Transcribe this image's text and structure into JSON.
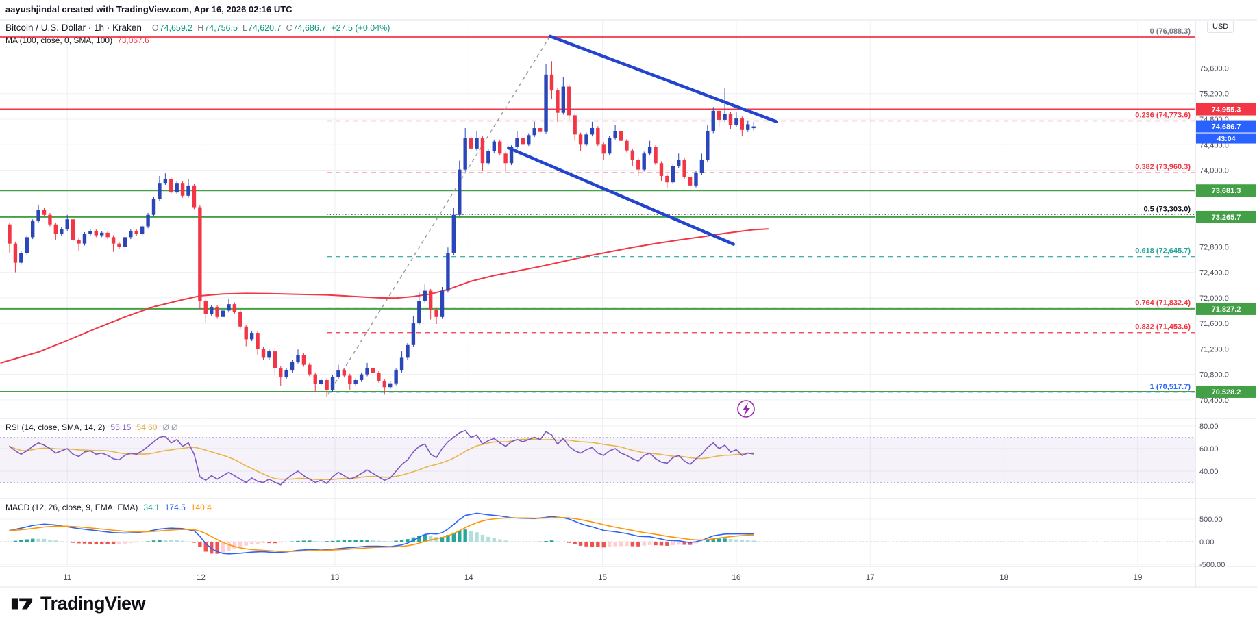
{
  "attribution": "aayushjindal created with TradingView.com, Apr 16, 2026 02:16 UTC",
  "symbol_header": {
    "title": "Bitcoin / U.S. Dollar · 1h · Kraken",
    "ohlc": {
      "o_label": "O",
      "o": "74,659.2",
      "h_label": "H",
      "h": "74,756.5",
      "l_label": "L",
      "l": "74,620.7",
      "c_label": "C",
      "c": "74,686.7",
      "change": "+27.5 (+0.04%)"
    },
    "ma_label": "MA (100, close, 0, SMA, 100)",
    "ma_value": "73,067.6"
  },
  "rsi_legend": {
    "title": "RSI (14, close, SMA, 14, 2)",
    "v1": "55.15",
    "v2": "54.60",
    "extra": "Ø Ø"
  },
  "macd_legend": {
    "title": "MACD (12, 26, close, 9, EMA, EMA)",
    "hist": "34.1",
    "macd": "174.5",
    "signal": "140.4"
  },
  "axis": {
    "currency": "USD",
    "main_ticks": [
      75600,
      75200,
      74800,
      74400,
      74000,
      72800,
      72400,
      72000,
      71600,
      71200,
      70800,
      70400
    ],
    "rsi_ticks": [
      80,
      60,
      40
    ],
    "macd_ticks": [
      500,
      0,
      -500
    ]
  },
  "time_axis": {
    "labels": [
      "11",
      "12",
      "13",
      "14",
      "15",
      "16",
      "17",
      "18",
      "19"
    ]
  },
  "logo_text": "TradingView",
  "colors": {
    "up": "#2a46b8",
    "down": "#F23645",
    "trend": "#2244cf",
    "ma": "#F23645",
    "rsi": "#7E57C2",
    "rsi_ma": "#E8B648",
    "band": "rgba(126,87,194,0.08)",
    "macd_line": "#2962FF",
    "signal_line": "#FF9500",
    "hist_up": "#26A69A",
    "hist_up_fade": "#B2DFDB",
    "hist_dn": "#EF5350",
    "hist_dn_fade": "#FFCDD2",
    "grid": "#eef0f5",
    "separator": "#e0e3eb",
    "axis_border": "#d6d9e0",
    "green_line": "#43A047",
    "red_line": "#F23645",
    "blue_tag": "#2962FF",
    "tick_text": "#4a4e59",
    "fib0_label": "#787b86"
  },
  "chart_data": {
    "type": "candlestick_with_indicators",
    "title": "Bitcoin / U.S. Dollar · 1h · Kraken",
    "current_price_tag": {
      "value": 74686.7,
      "text": "74,686.7",
      "countdown": "43:04"
    },
    "candles": {
      "first_open": 73150,
      "open_overrides": {
        "0": 73150,
        "129": 74659.2
      },
      "closes": [
        72850,
        72550,
        72700,
        72950,
        73200,
        73380,
        73300,
        73150,
        73000,
        73080,
        73230,
        72900,
        72850,
        73000,
        73050,
        72980,
        73020,
        72950,
        72850,
        72800,
        72950,
        73050,
        73000,
        73120,
        73300,
        73550,
        73800,
        73860,
        73650,
        73800,
        73600,
        73760,
        73420,
        71950,
        71750,
        71860,
        71700,
        71800,
        71900,
        71780,
        71550,
        71350,
        71450,
        71200,
        71060,
        71160,
        70900,
        70760,
        70860,
        71000,
        71100,
        70950,
        70800,
        70650,
        70710,
        70550,
        70760,
        70860,
        70780,
        70650,
        70710,
        70800,
        70900,
        70820,
        70700,
        70600,
        70660,
        70860,
        71060,
        71260,
        71600,
        71950,
        72110,
        71810,
        71700,
        72110,
        72700,
        73300,
        74010,
        74500,
        74340,
        74500,
        74110,
        74300,
        74450,
        74260,
        74110,
        74360,
        74500,
        74410,
        74550,
        74660,
        74600,
        75500,
        75250,
        74900,
        75310,
        74860,
        74560,
        74410,
        74560,
        74660,
        74410,
        74260,
        74510,
        74610,
        74460,
        74310,
        74160,
        74010,
        74260,
        74360,
        74110,
        73910,
        73810,
        74060,
        74160,
        73890,
        73760,
        73960,
        74160,
        74610,
        74930,
        74790,
        74880,
        74710,
        74810,
        74630,
        74720,
        74686.7
      ],
      "high_overrides": {
        "5": 73460,
        "10": 73300,
        "26": 73910,
        "27": 73950,
        "31": 73860,
        "38": 71980,
        "50": 71190,
        "57": 70950,
        "62": 70980,
        "68": 71160,
        "70": 71710,
        "71": 72090,
        "72": 72210,
        "75": 72170,
        "76": 72790,
        "77": 73410,
        "78": 74150,
        "79": 74660,
        "81": 74610,
        "88": 74610,
        "91": 74760,
        "93": 75660,
        "94": 75710,
        "96": 75460,
        "101": 74760,
        "105": 74710,
        "111": 74460,
        "116": 74260,
        "120": 74260,
        "121": 74710,
        "122": 74990,
        "124": 75290,
        "126": 74910,
        "128": 74780,
        "129": 74756.5
      },
      "low_overrides": {
        "0": 72700,
        "1": 72400,
        "8": 72900,
        "12": 72740,
        "18": 72720,
        "33": 71820,
        "34": 71600,
        "41": 71240,
        "43": 71100,
        "46": 70790,
        "47": 70620,
        "53": 70520,
        "55": 70450,
        "59": 70560,
        "65": 70480,
        "73": 71660,
        "74": 71590,
        "82": 73990,
        "86": 73980,
        "94": 75120,
        "95": 74760,
        "97": 74790,
        "98": 74460,
        "99": 74300,
        "103": 74160,
        "108": 74060,
        "109": 73910,
        "113": 73830,
        "114": 73720,
        "118": 73630,
        "123": 74670,
        "125": 74640,
        "127": 74530,
        "129": 74620.7
      }
    },
    "ma_points": [
      [
        -1.5,
        70980
      ],
      [
        5,
        71150
      ],
      [
        10,
        71330
      ],
      [
        15,
        71520
      ],
      [
        20,
        71700
      ],
      [
        25,
        71860
      ],
      [
        30,
        71970
      ],
      [
        33,
        72030
      ],
      [
        37,
        72060
      ],
      [
        41,
        72070
      ],
      [
        45,
        72065
      ],
      [
        50,
        72055
      ],
      [
        55,
        72045
      ],
      [
        60,
        72020
      ],
      [
        64,
        72000
      ],
      [
        67,
        71995
      ],
      [
        70,
        72020
      ],
      [
        73,
        72060
      ],
      [
        76,
        72130
      ],
      [
        80,
        72260
      ],
      [
        84,
        72350
      ],
      [
        88,
        72420
      ],
      [
        92,
        72490
      ],
      [
        96,
        72570
      ],
      [
        100,
        72650
      ],
      [
        104,
        72720
      ],
      [
        108,
        72790
      ],
      [
        112,
        72850
      ],
      [
        116,
        72905
      ],
      [
        120,
        72955
      ],
      [
        124,
        73010
      ],
      [
        127,
        73045
      ],
      [
        129,
        73067.6
      ],
      [
        131.5,
        73080
      ]
    ],
    "fib_levels": [
      {
        "label": "0 (76,088.3)",
        "value": 76088.3,
        "line_color": "#F23645",
        "label_color": "#787b86",
        "style": "solid",
        "full_width": true
      },
      {
        "label": "0.236 (74,773.6)",
        "value": 74773.6,
        "line_color": "#F23645",
        "label_color": "#F23645",
        "style": "dashed"
      },
      {
        "label": "0.382 (73,960.3)",
        "value": 73960.3,
        "line_color": "#F23645",
        "label_color": "#F23645",
        "style": "dashed"
      },
      {
        "label": "0.5 (73,303.0)",
        "value": 73303.0,
        "line_color": "#5d606b",
        "label_color": "#131722",
        "style": "dotted"
      },
      {
        "label": "0.618 (72,645.7)",
        "value": 72645.7,
        "line_color": "#26A69A",
        "label_color": "#26A69A",
        "style": "dashed"
      },
      {
        "label": "0.764 (71,832.4)",
        "value": 71832.4,
        "line_color": "#F23645",
        "label_color": "#F23645",
        "style": "dashed"
      },
      {
        "label": "0.832 (71,453.6)",
        "value": 71453.6,
        "line_color": "#F23645",
        "label_color": "#F23645",
        "style": "dashed"
      },
      {
        "label": "1 (70,517.7)",
        "value": 70517.7,
        "line_color": "#64b5f6",
        "label_color": "#2962FF",
        "style": "dashed"
      }
    ],
    "hlines": [
      {
        "value": 74955.3,
        "color": "#F23645",
        "tag": "74,955.3"
      },
      {
        "value": 73681.3,
        "color": "#43A047",
        "tag": "73,681.3"
      },
      {
        "value": 73265.7,
        "color": "#43A047",
        "tag": "73,265.7"
      },
      {
        "value": 71827.2,
        "color": "#43A047",
        "tag": "71,827.2"
      },
      {
        "value": 70528.2,
        "color": "#43A047",
        "tag": "70,528.2"
      }
    ],
    "trendlines": [
      {
        "from": [
          93.7,
          76100
        ],
        "to": [
          133,
          74760
        ]
      },
      {
        "from": [
          86.5,
          74350
        ],
        "to": [
          125.5,
          72840
        ]
      }
    ],
    "dashed_line": {
      "from": [
        55.2,
        70480
      ],
      "to": [
        93.6,
        76088
      ]
    },
    "rsi": {
      "period_label": "RSI (14, close, SMA, 14, 2)",
      "upper_band": 70,
      "lower_band": 30,
      "middle": 50,
      "values": [
        62,
        58,
        55,
        58,
        62,
        65,
        63,
        60,
        56,
        58,
        60,
        55,
        53,
        57,
        58,
        55,
        56,
        54,
        51,
        50,
        54,
        56,
        55,
        58,
        62,
        66,
        70,
        71,
        65,
        68,
        62,
        65,
        55,
        35,
        32,
        36,
        33,
        36,
        39,
        36,
        33,
        30,
        34,
        31,
        30,
        33,
        30,
        28,
        33,
        37,
        40,
        36,
        33,
        30,
        32,
        29,
        35,
        39,
        36,
        33,
        35,
        38,
        41,
        38,
        35,
        32,
        34,
        40,
        46,
        50,
        57,
        62,
        64,
        55,
        52,
        60,
        66,
        70,
        74,
        76,
        70,
        72,
        64,
        67,
        69,
        65,
        62,
        66,
        68,
        66,
        68,
        70,
        68,
        75,
        72,
        64,
        69,
        62,
        58,
        56,
        59,
        61,
        56,
        54,
        58,
        60,
        56,
        54,
        51,
        49,
        54,
        56,
        51,
        48,
        47,
        52,
        54,
        49,
        46,
        51,
        55,
        61,
        65,
        60,
        63,
        57,
        59,
        54,
        56,
        55.15
      ]
    },
    "macd": {
      "period_label": "MACD (12, 26, close, 9, EMA, EMA)",
      "points": [
        [
          0,
          250
        ],
        [
          2,
          300
        ],
        [
          4,
          360
        ],
        [
          6,
          390
        ],
        [
          8,
          370
        ],
        [
          10,
          330
        ],
        [
          12,
          290
        ],
        [
          14,
          260
        ],
        [
          16,
          230
        ],
        [
          18,
          200
        ],
        [
          20,
          190
        ],
        [
          22,
          200
        ],
        [
          24,
          230
        ],
        [
          26,
          280
        ],
        [
          28,
          300
        ],
        [
          30,
          290
        ],
        [
          32,
          240
        ],
        [
          33,
          120
        ],
        [
          34,
          -40
        ],
        [
          35,
          -150
        ],
        [
          36,
          -220
        ],
        [
          37,
          -260
        ],
        [
          38,
          -270
        ],
        [
          40,
          -255
        ],
        [
          42,
          -230
        ],
        [
          44,
          -220
        ],
        [
          46,
          -240
        ],
        [
          48,
          -225
        ],
        [
          50,
          -190
        ],
        [
          52,
          -170
        ],
        [
          54,
          -185
        ],
        [
          56,
          -165
        ],
        [
          58,
          -140
        ],
        [
          60,
          -120
        ],
        [
          62,
          -100
        ],
        [
          64,
          -100
        ],
        [
          66,
          -110
        ],
        [
          68,
          -70
        ],
        [
          69,
          -30
        ],
        [
          70,
          30
        ],
        [
          71,
          100
        ],
        [
          72,
          160
        ],
        [
          73,
          180
        ],
        [
          74,
          170
        ],
        [
          75,
          200
        ],
        [
          76,
          280
        ],
        [
          77,
          380
        ],
        [
          78,
          490
        ],
        [
          79,
          580
        ],
        [
          81,
          630
        ],
        [
          83,
          595
        ],
        [
          85,
          570
        ],
        [
          87,
          532
        ],
        [
          89,
          520
        ],
        [
          91,
          510
        ],
        [
          93,
          540
        ],
        [
          94,
          560
        ],
        [
          95,
          540
        ],
        [
          96,
          530
        ],
        [
          97,
          500
        ],
        [
          98,
          450
        ],
        [
          99,
          400
        ],
        [
          100,
          360
        ],
        [
          101,
          330
        ],
        [
          102,
          290
        ],
        [
          103,
          250
        ],
        [
          105,
          220
        ],
        [
          107,
          180
        ],
        [
          109,
          120
        ],
        [
          111,
          110
        ],
        [
          113,
          60
        ],
        [
          114,
          30
        ],
        [
          116,
          20
        ],
        [
          117,
          0
        ],
        [
          118,
          -20
        ],
        [
          119,
          0
        ],
        [
          120,
          30
        ],
        [
          121,
          80
        ],
        [
          122,
          130
        ],
        [
          123,
          150
        ],
        [
          124,
          170
        ],
        [
          126,
          175
        ],
        [
          128,
          172
        ],
        [
          129,
          174.5
        ]
      ]
    }
  }
}
